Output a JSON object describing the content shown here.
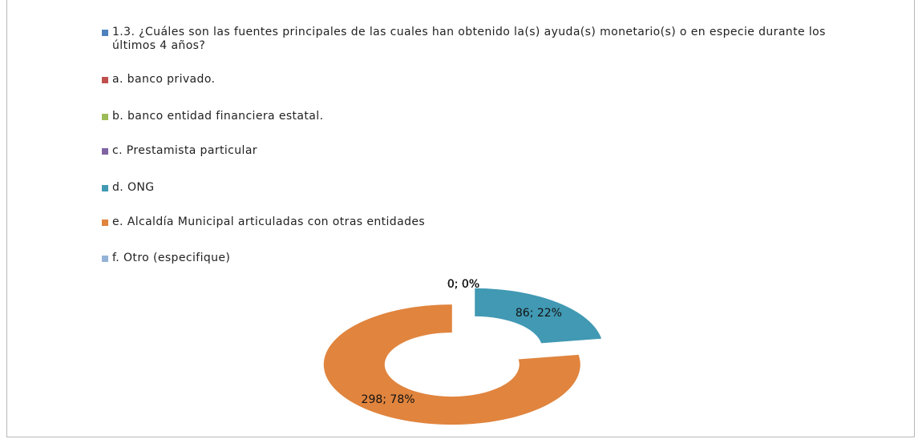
{
  "chart_data": {
    "type": "doughnut",
    "categories": [
      "1.3. ¿Cuáles son las fuentes principales de las cuales han obtenido la(s) ayuda(s) monetario(s)  o en especie durante los    últimos 4 años?",
      "a. banco privado.",
      "b. banco entidad financiera estatal.",
      "c. Prestamista particular",
      "d. ONG",
      "e. Alcaldía Municipal articuladas con otras entidades",
      "f. Otro (especifique)"
    ],
    "values": [
      0,
      0,
      0,
      0,
      86,
      298,
      0
    ],
    "value_labels": [
      "0; 0%",
      "0; 0%",
      "0; 0%",
      "0; 0%",
      "86; 22%",
      "298; 78%",
      "0; 0%"
    ],
    "colors": [
      "#4f81bd",
      "#c0504d",
      "#9bbb59",
      "#8064a2",
      "#4199b3",
      "#e0843e",
      "#95b3d7"
    ],
    "legend": "top-left"
  }
}
